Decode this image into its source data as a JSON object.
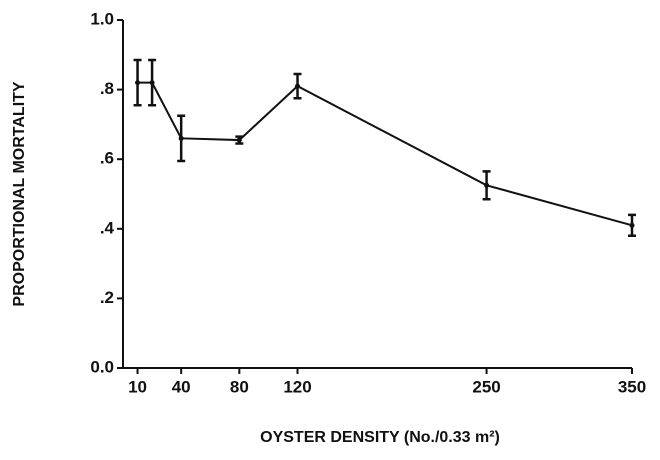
{
  "chart_data": {
    "type": "line",
    "x_label": "OYSTER DENSITY (No./0.33 m²)",
    "y_label": "PROPORTIONAL MORTALITY",
    "x": [
      10,
      20,
      40,
      80,
      120,
      250,
      350
    ],
    "series": [
      {
        "color": "#111111",
        "values": [
          0.82,
          0.82,
          0.66,
          0.655,
          0.81,
          0.525,
          0.41
        ],
        "errors": [
          0.065,
          0.065,
          0.065,
          0.01,
          0.035,
          0.04,
          0.03
        ]
      }
    ],
    "xlim": [
      0,
      350
    ],
    "xticks": [
      10,
      40,
      80,
      120,
      250,
      350
    ],
    "ylim": [
      0,
      1
    ],
    "yticks": [
      {
        "value": 0,
        "label": "0.0"
      },
      {
        "value": 0.2,
        "label": ".2"
      },
      {
        "value": 0.4,
        "label": ".4"
      },
      {
        "value": 0.6,
        "label": ".6"
      },
      {
        "value": 0.8,
        "label": ".8"
      },
      {
        "value": 1,
        "label": "1.0"
      }
    ],
    "grid": false
  }
}
